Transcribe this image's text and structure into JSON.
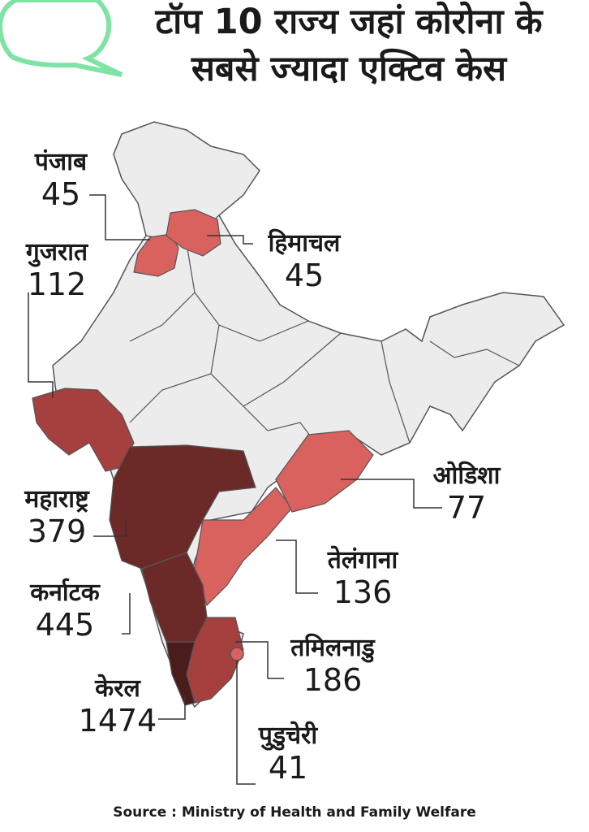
{
  "title": {
    "line1": "टॉप 10 राज्य जहां कोरोना के",
    "line2": "सबसे ज्यादा एक्टिव केस"
  },
  "colors": {
    "bubble": "#7fe3a6",
    "base": "#ececec",
    "border": "#555555",
    "low": "#d9625e",
    "mid": "#a6403e",
    "high": "#6b2a28",
    "top": "#4a1d1c"
  },
  "states": [
    {
      "name": "पंजाब",
      "value": "45"
    },
    {
      "name": "हिमाचल",
      "value": "45"
    },
    {
      "name": "गुजरात",
      "value": "112"
    },
    {
      "name": "महाराष्ट्र",
      "value": "379"
    },
    {
      "name": "कर्नाटक",
      "value": "445"
    },
    {
      "name": "केरल",
      "value": "1474"
    },
    {
      "name": "ओडिशा",
      "value": "77"
    },
    {
      "name": "तेलंगाना",
      "value": "136"
    },
    {
      "name": "तमिलनाडु",
      "value": "186"
    },
    {
      "name": "पुडुचेरी",
      "value": "41"
    }
  ],
  "source": "Source : Ministry of Health and Family Welfare"
}
